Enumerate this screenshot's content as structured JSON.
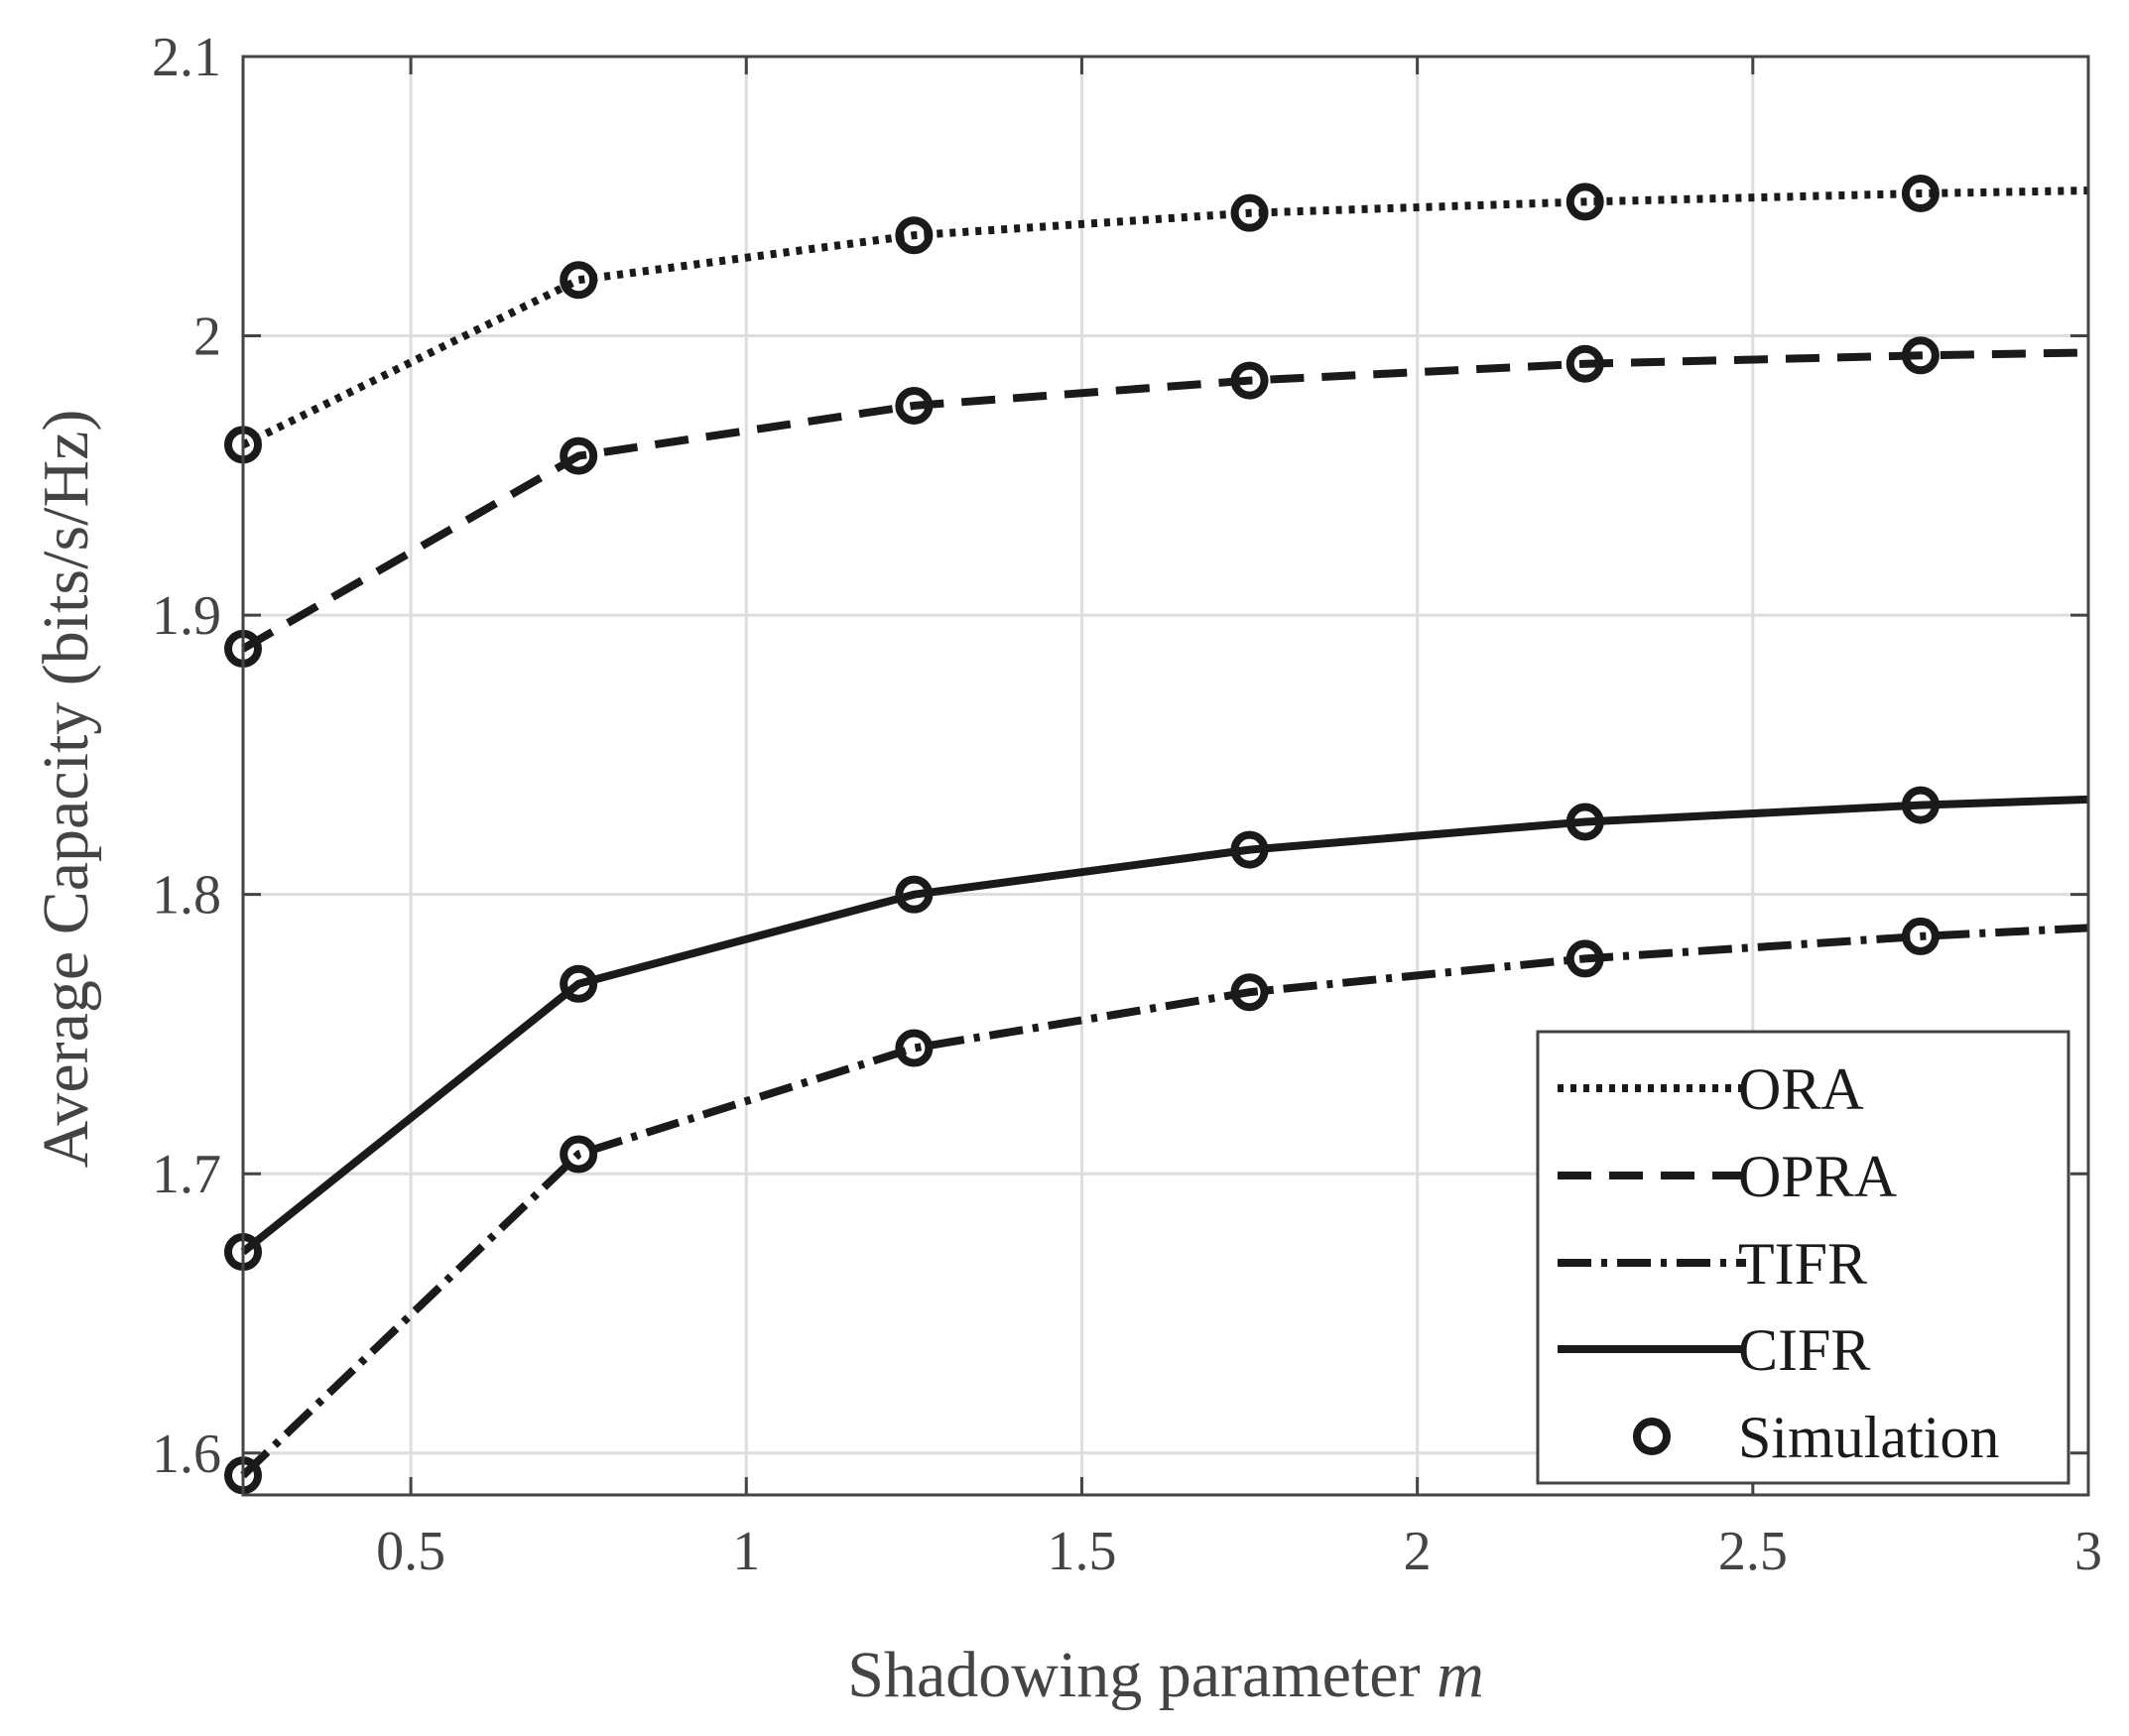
{
  "chart_data": {
    "type": "line",
    "title": "",
    "xlabel": "Shadowing parameter",
    "xlabel_var": "m",
    "ylabel": "Average Capacity (bits/s/Hz)",
    "xlim": [
      0.25,
      3
    ],
    "ylim": [
      1.585,
      2.1
    ],
    "xticks": [
      0.5,
      1,
      1.5,
      2,
      2.5,
      3
    ],
    "xtick_labels": [
      "0.5",
      "1",
      "1.5",
      "2",
      "2.5",
      "3"
    ],
    "yticks": [
      1.6,
      1.7,
      1.8,
      1.9,
      2,
      2.1
    ],
    "ytick_labels": [
      "1.6",
      "1.7",
      "1.8",
      "1.9",
      "2",
      "2.1"
    ],
    "grid": true,
    "legend_position": "bottom-right",
    "series": [
      {
        "name": "ORA",
        "style": "dotted",
        "x": [
          0.25,
          0.75,
          1.25,
          1.75,
          2.25,
          2.75,
          3
        ],
        "values": [
          1.961,
          2.02,
          2.036,
          2.044,
          2.048,
          2.051,
          2.052
        ]
      },
      {
        "name": "OPRA",
        "style": "dashed",
        "x": [
          0.25,
          0.75,
          1.25,
          1.75,
          2.25,
          2.75,
          3
        ],
        "values": [
          1.888,
          1.957,
          1.975,
          1.984,
          1.99,
          1.993,
          1.994
        ]
      },
      {
        "name": "TIFR",
        "style": "dashdot",
        "x": [
          0.25,
          0.75,
          1.25,
          1.75,
          2.25,
          2.75,
          3
        ],
        "values": [
          1.592,
          1.707,
          1.745,
          1.765,
          1.777,
          1.785,
          1.788
        ]
      },
      {
        "name": "CIFR",
        "style": "solid",
        "x": [
          0.25,
          0.75,
          1.25,
          1.75,
          2.25,
          2.75,
          3
        ],
        "values": [
          1.672,
          1.768,
          1.8,
          1.816,
          1.826,
          1.832,
          1.834
        ]
      }
    ],
    "simulation": {
      "name": "Simulation",
      "x": [
        0.25,
        0.75,
        1.25,
        1.75,
        2.25,
        2.75
      ],
      "points": [
        [
          1.961,
          2.02,
          2.036,
          2.044,
          2.048,
          2.051
        ],
        [
          1.888,
          1.957,
          1.975,
          1.984,
          1.99,
          1.993
        ],
        [
          1.592,
          1.707,
          1.745,
          1.765,
          1.777,
          1.785
        ],
        [
          1.672,
          1.768,
          1.8,
          1.816,
          1.826,
          1.832
        ]
      ]
    },
    "legend": [
      "ORA",
      "OPRA",
      "TIFR",
      "CIFR",
      "Simulation"
    ],
    "colors": {
      "line": "#1a1a1a",
      "grid": "#dddddd",
      "axis": "#444444"
    }
  }
}
